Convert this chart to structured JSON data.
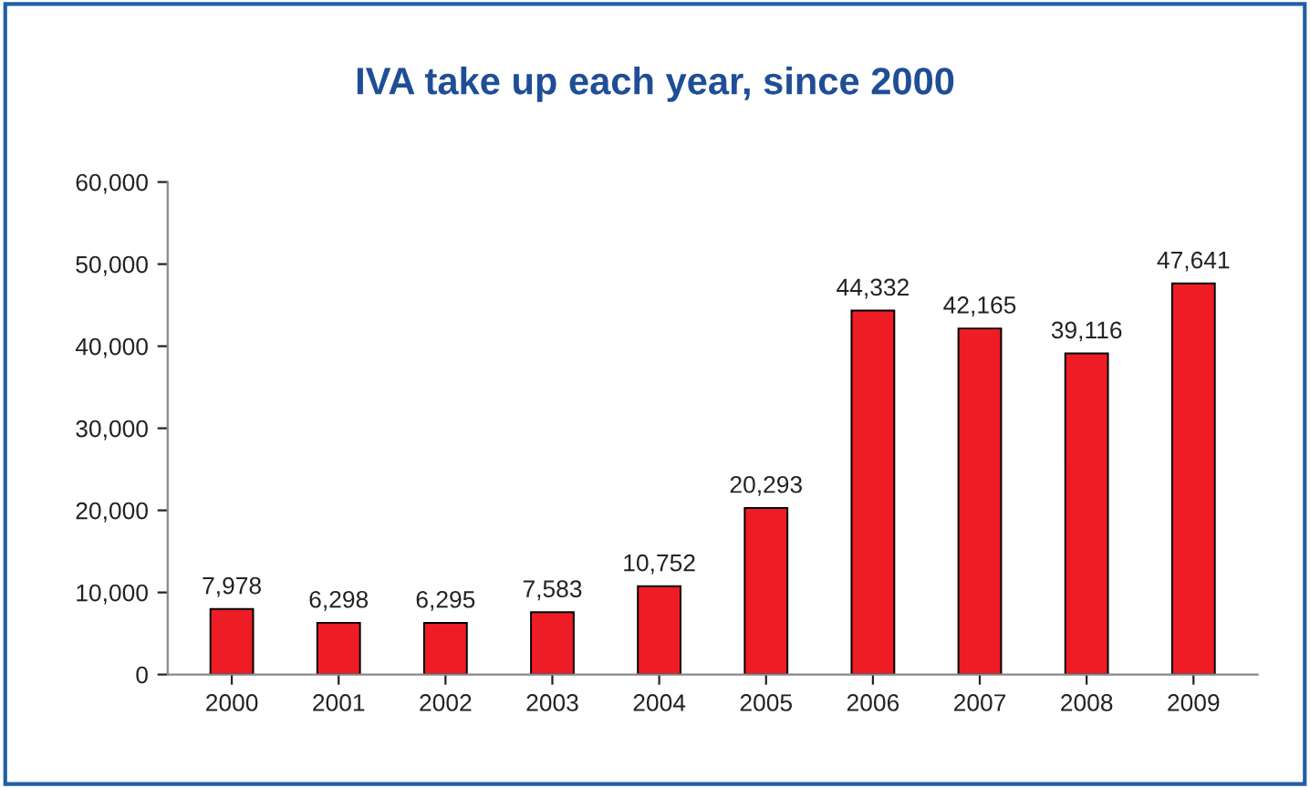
{
  "chart_data": {
    "type": "bar",
    "title": "IVA take up each year, since 2000",
    "categories": [
      "2000",
      "2001",
      "2002",
      "2003",
      "2004",
      "2005",
      "2006",
      "2007",
      "2008",
      "2009"
    ],
    "values": [
      7978,
      6298,
      6295,
      7583,
      10752,
      20293,
      44332,
      42165,
      39116,
      47641
    ],
    "color": "#ee1c24",
    "ylim": [
      0,
      60000
    ],
    "yticks": [
      {
        "value": 0,
        "label": "0"
      },
      {
        "value": 10000,
        "label": "10,000"
      },
      {
        "value": 20000,
        "label": "20,000"
      },
      {
        "value": 30000,
        "label": "30,000"
      },
      {
        "value": 40000,
        "label": "40,000"
      },
      {
        "value": 50000,
        "label": "50,000"
      },
      {
        "value": 60000,
        "label": "60,000"
      }
    ],
    "value_labels": [
      "7,978",
      "6,298",
      "6,295",
      "7,583",
      "10,752",
      "20,293",
      "44,332",
      "42,165",
      "39,116",
      "47,641"
    ],
    "grid": false,
    "legend": false
  }
}
